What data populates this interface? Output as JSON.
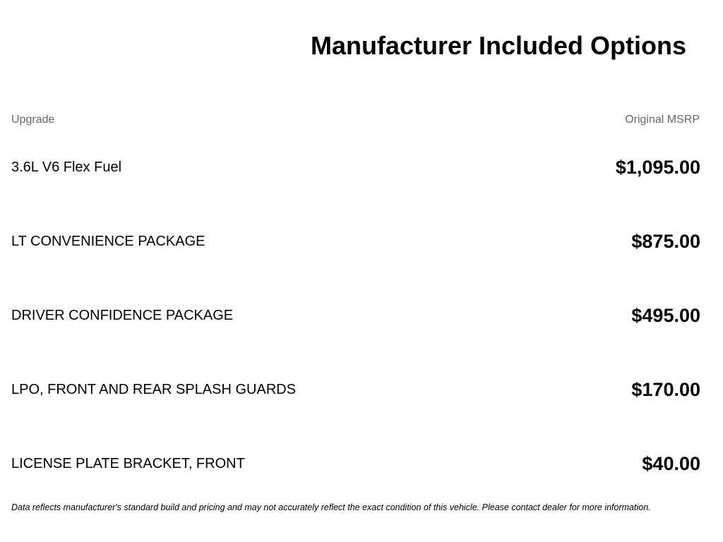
{
  "header": {
    "title": "Manufacturer Included Options"
  },
  "table": {
    "columns": [
      "Upgrade",
      "Original MSRP"
    ],
    "rows": [
      [
        "3.6L V6 Flex Fuel",
        "$1,095.00"
      ],
      [
        "LT CONVENIENCE PACKAGE",
        "$875.00"
      ],
      [
        "DRIVER CONFIDENCE PACKAGE",
        "$495.00"
      ],
      [
        "LPO, FRONT AND REAR SPLASH GUARDS",
        "$170.00"
      ],
      [
        "LICENSE PLATE BRACKET, FRONT",
        "$40.00"
      ]
    ]
  },
  "footer": {
    "note": "Data reflects manufacturer's standard build and pricing and may not accurately reflect the exact condition of this vehicle. Please contact dealer for more information."
  }
}
